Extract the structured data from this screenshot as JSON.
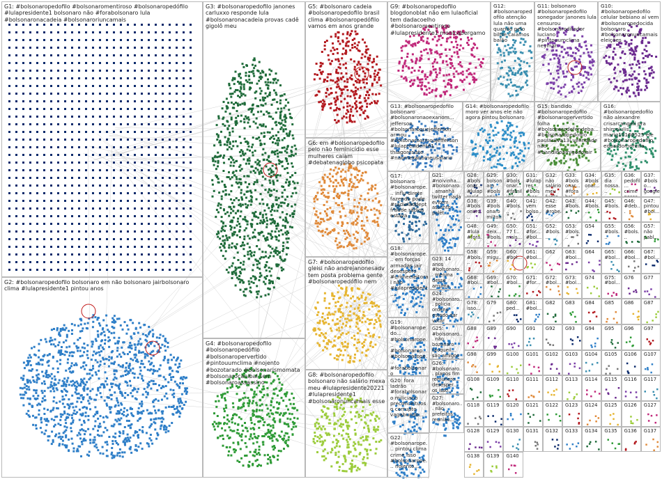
{
  "groups": [
    {
      "id": "G1",
      "label": "G1: #bolsonaropedofilo #bolsonaromentiroso #bolsonaropedófilo #lulapresidente1 bolsonaro não #forabolsonaro lula #bolsonaronacadeia #bolsonaroriuncamais",
      "color": "#0b2a6b"
    },
    {
      "id": "G2",
      "label": "G2: #bolsonaropedofilo bolsonaro em não bolsonaro jairbolsonaro clima #lulapresidente1 pintou anos",
      "color": "#2f7fc8"
    },
    {
      "id": "G3",
      "label": "G3: #bolsonaropedofilo janones carluxxo responde lula #bolsonaronacadeia provas cadê gigolô meu",
      "color": "#1f6b3a"
    },
    {
      "id": "G4",
      "label": "G4: #bolsonaropedofilo #bolsonaropedófilo #bolsonaropervertido #pintouumclima #nojento #bozotarado #bolsonarismomata #bolsonarocanibal sem #bolsonaroassassino",
      "color": "#2e9b36"
    },
    {
      "id": "G5",
      "label": "G5: #bolsonaro cadeia #bolsonaropedofilo brasil clima #bolsonaropedófilo vamos em anos grande",
      "color": "#b3191f"
    },
    {
      "id": "G6",
      "label": "G6: em #bolsonaropedofilo pelo não feminicídio esse mulheres caiam #debatenaglobo psicopata",
      "color": "#e08a3a"
    },
    {
      "id": "G7",
      "label": "G7: #bolsonaropedofilo gleisi não andrejanonesadv tem posta problema gente #bolsonaropedófilo nem",
      "color": "#e6b531"
    },
    {
      "id": "G8",
      "label": "G8: #bolsonaropedofilo bolsonaro não salário mexa meu #lulapresidente20221 #lulapresidente1 #bolsonaronuncamais esse",
      "color": "#9ccc3c"
    },
    {
      "id": "G9",
      "label": "G9: #bolsonaropedofilo blogdonoblat não em lulaoficial tem dadacoelho #bolsonaromentiroso #lulapresidente1 monicabergamo",
      "color": "#c0287a"
    },
    {
      "id": "G10",
      "label": "G10: #bolsonaropedofilo celular bebiano aí vem #bolsonaropedocida bolsonaro #bolsonaronuncamais eleições",
      "color": "#6b2a8f"
    },
    {
      "id": "G11",
      "label": "G11: bolsonaro #bolsonaropedofilo sonegador janones lula censurou #bolsonaroditador luciano #pintouumclima neymar",
      "color": "#7b3fa8"
    },
    {
      "id": "G12",
      "label": "G12: #bolsonaropedofilo atenção lula não uma quando pelo biltre caiamos balão",
      "color": "#3b8fb0"
    },
    {
      "id": "G13",
      "label": "G13: #bolsonaropedofilo bolsonaro #bolsonaronaoexanom... jefferson #bolsonaroquejefferson armou #bolsonaroarmoujefferson #lulapresidente1 thiagoresiste #naomexanomeusalario",
      "color": "#3a7bbf"
    },
    {
      "id": "G14",
      "label": "G14: #bolsonaropedofilo moro ver anos ele não agora pintou bolsonaro",
      "color": "#2f8fc8"
    },
    {
      "id": "G15",
      "label": "G15: bandido #bolsonaropedofilo #bolsonaropervertido folha #bolsonarodefendeba... #bolsonaropedofilo paulasilva13l velindade não #bandidoamigodojair",
      "color": "#4b8f3a"
    },
    {
      "id": "G16",
      "label": "G16: #bolsonaropedofilo não alexandre crisarcangeli pra shimolulis mariq10166525 ele #bolsonaropedofilo eduardomoreira",
      "color": "#2f8f6b"
    },
    {
      "id": "G17",
      "label": "G17: bolsonaro #bolsonarope... influ direte fazendo pode #radiolaodept fraude rádios estava",
      "color": "#2f6b9c"
    },
    {
      "id": "G18",
      "label": "G18: #bolsonarope... em forças armadas jair desespero #crimeeleitoral não #lulapresident...",
      "color": "#2f7fc8"
    },
    {
      "id": "G19",
      "label": "G19: #bolsonaropedo... #bolsonarope... #bolsonarop... #bolsonarope... #forabolsonaro",
      "color": "#2f7fc8"
    },
    {
      "id": "G20",
      "label": "G20: fora ladrão #forabolsonaro miliciano preconceituoso corrupto vagabundo...",
      "color": "#2f7fc8"
    },
    {
      "id": "G21",
      "label": "G21: #noivinha... #bolsonaro... amanhã twitter nada evitem assunto polêt...",
      "color": "#2f7fc8"
    },
    {
      "id": "G22",
      "label": "G22: #bolsonarope... pintou clima crime isso #bolsonarope... nojento...",
      "color": "#2f7fc8"
    },
    {
      "id": "G23",
      "label": "G23: 14 anos #bolsonaro... menina desse arruma pronto ah...",
      "color": "#2f7fc8"
    },
    {
      "id": "G24",
      "label": "G24: #bolsonaro... polícia ordenó estado dar votar impedir...",
      "color": "#2f7fc8"
    },
    {
      "id": "G25",
      "label": "G25: #bolsonaro... não bozonaro taoqueil... são amigos pedófilo maraiaras",
      "color": "#2f7fc8"
    },
    {
      "id": "G26",
      "label": "G26: #bolsonaro... planos fim remunere... desesper... os isso...",
      "color": "#2f7fc8"
    },
    {
      "id": "G27",
      "label": "G27: #bolsonaro... não prefeitos reunião...",
      "color": "#2f7fc8"
    }
  ],
  "small_groups": [
    "G28: #bolsonar... #lulapresid... bolsonar...",
    "G29: bolsonaro #bolsonar...",
    "G30: #bolsonar... #familicia... fuzilem...",
    "G31: #lulapres... #bolsonar... bolsonar...",
    "G32: não salário meu fuzilem...",
    "G33: #bolsonar... #forabol...",
    "G34: #bolsonar...",
    "G35: dia nossa...",
    "G36: pedofil... crime nossa...",
    "G37: #bolso... google...",
    "G38: #bolsonaro...",
    "G39: #bolsonaro milton...",
    "G40: #bols...",
    "G41: vem bolso...",
    "G42: esse #robe...",
    "G43: #bols...",
    "G44: #bols...",
    "G45: #bols...",
    "G46: #deb...",
    "G47: pintou #bol...",
    "G48: #lula #fora...",
    "G49: deix... #bols...",
    "G50: 77 f... mais...",
    "G51: #for... #bol...",
    "G52: #bols...",
    "G53: #bols...",
    "G54",
    "G55: #bols...",
    "G56: #bols...",
    "G57: não pabl...",
    "G58: #bols...",
    "G59: migu...",
    "G60: #bol...",
    "G61: #bol...",
    "G62",
    "G63: #bol...",
    "G64",
    "G65: #bol...",
    "G66: #bol...",
    "G67: #bol...",
    "G68: #bol...",
    "G69: #bol...",
    "G70: #bol...",
    "G71: #for...",
    "G72: #bol...",
    "G73: #bol...",
    "G74",
    "G75: #bol...",
    "G76",
    "G77",
    "G78: isso...",
    "G79",
    "G80: ped...",
    "G81: #bol...",
    "G82",
    "G83",
    "G84",
    "G85",
    "G86",
    "G87",
    "G88",
    "G89",
    "G90",
    "G91",
    "G92",
    "G93",
    "G94",
    "G95",
    "G96",
    "G97",
    "G98",
    "G99",
    "G100",
    "G101",
    "G102",
    "G103",
    "G104",
    "G105",
    "G106",
    "G107",
    "G108",
    "G109",
    "G110",
    "G111",
    "G112",
    "G113",
    "G114",
    "G115",
    "G116",
    "G117",
    "G118",
    "G119",
    "G120",
    "G121",
    "G122",
    "G123",
    "G124",
    "G125",
    "G126",
    "G127",
    "G128",
    "G129",
    "G130",
    "G131",
    "G132",
    "G133",
    "G134",
    "G135",
    "G136",
    "G137",
    "G138",
    "G139",
    "G140"
  ],
  "palette": [
    "#0b2a6b",
    "#2f7fc8",
    "#1f6b3a",
    "#2e9b36",
    "#b3191f",
    "#e08a3a",
    "#e6b531",
    "#9ccc3c",
    "#c0287a",
    "#6b2a8f",
    "#7b3fa8",
    "#3b8fb0",
    "#777777"
  ]
}
